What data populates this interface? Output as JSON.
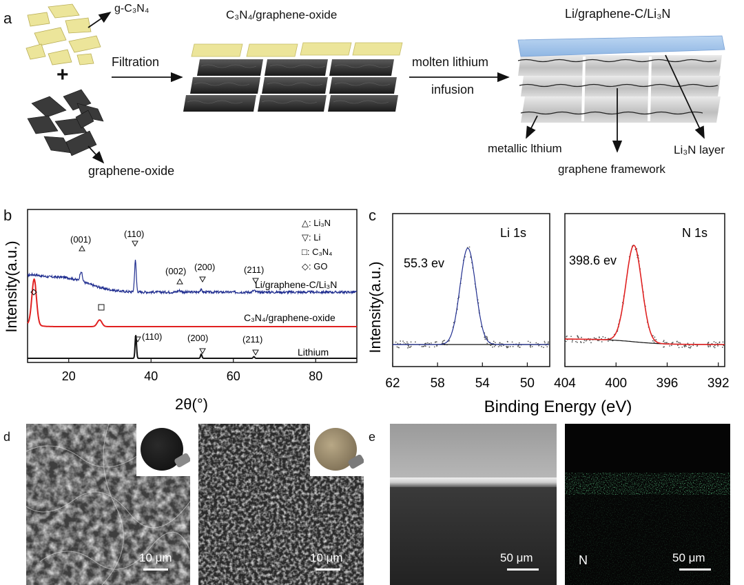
{
  "panels": {
    "a": {
      "label": "a",
      "texts": {
        "gc3n4": "g-C₃N₄",
        "plus": "+",
        "graphene_oxide": "graphene-oxide",
        "filtration": "Filtration",
        "composite_title": "C₃N₄/graphene-oxide",
        "molten_lithium": "molten lithium",
        "infusion": "infusion",
        "product_title": "Li/graphene-C/Li₃N",
        "metallic_lithium": "metallic lthium",
        "li3n_layer": "Li₃N layer",
        "graphene_framework": "graphene framework"
      }
    },
    "b": {
      "label": "b",
      "ylabel": "Intensity(a.u.)",
      "xlabel": "2θ(°)",
      "legend": [
        "△: Li₃N",
        "▽: Li",
        "□: C₃N₄",
        "◇: GO"
      ],
      "trace_labels": [
        "Li/graphene-C/Li₃N",
        "C₃N₄/graphene-oxide",
        "Lithium"
      ],
      "peak_labels_top": [
        "(001)",
        "(110)",
        "(002)",
        "(200)",
        "(211)"
      ],
      "peak_labels_bottom": [
        "(110)",
        "(200)",
        "(211)"
      ]
    },
    "c": {
      "label": "c",
      "ylabel": "Intensity(a.u.)",
      "xlabel": "Binding Energy (eV)",
      "li_title": "Li 1s",
      "li_peak": "55.3 ev",
      "n_title": "N 1s",
      "n_peak": "398.6 ev"
    },
    "d": {
      "label": "d",
      "scale_left": "10 μm",
      "scale_right": "10 μm"
    },
    "e": {
      "label": "e",
      "scale_left": "50 μm",
      "scale_right": "50 μm",
      "element_label": "N"
    }
  },
  "chart_data": [
    {
      "type": "line",
      "panel": "b",
      "xlabel": "2θ(°)",
      "ylabel": "Intensity(a.u.)",
      "xlim": [
        10,
        90
      ],
      "xticks": [
        20,
        40,
        60,
        80
      ],
      "y_ticks_shown": false,
      "series": [
        {
          "name": "Li/graphene-C/Li₃N",
          "color": "#1f2d8f",
          "baseline": 0.27,
          "peaks": [
            [
              23,
              0.12,
              0.4
            ],
            [
              36.2,
              0.38,
              0.3
            ],
            [
              46.9,
              0.02,
              0.6
            ],
            [
              52.1,
              0.03,
              0.4
            ],
            [
              65,
              0.02,
              0.4
            ]
          ]
        },
        {
          "name": "C₃N₄/graphene-oxide",
          "color": "#e02020",
          "baseline": 0.0,
          "peaks": [
            [
              11.6,
              0.55,
              0.8
            ],
            [
              27.5,
              0.08,
              0.8
            ]
          ]
        },
        {
          "name": "Lithium",
          "color": "#111111",
          "baseline": 0.0,
          "peaks": [
            [
              36.3,
              0.28,
              0.25
            ],
            [
              52.2,
              0.05,
              0.25
            ],
            [
              65.0,
              0.02,
              0.25
            ]
          ]
        }
      ]
    },
    {
      "type": "scatter",
      "panel": "c-left",
      "title": "Li 1s",
      "xlabel": "Binding Energy (eV)",
      "xlim": [
        62,
        48
      ],
      "xticks": [
        62,
        58,
        54,
        50
      ],
      "fit_peak": {
        "center": 55.3,
        "label": "55.3 ev",
        "color": "#1f2d8f"
      }
    },
    {
      "type": "scatter",
      "panel": "c-right",
      "title": "N 1s",
      "xlabel": "Binding Energy (eV)",
      "xlim": [
        404,
        391.5
      ],
      "xticks": [
        404,
        400,
        396,
        392
      ],
      "fit_peak": {
        "center": 398.6,
        "label": "398.6 ev",
        "color": "#e02020"
      }
    }
  ]
}
